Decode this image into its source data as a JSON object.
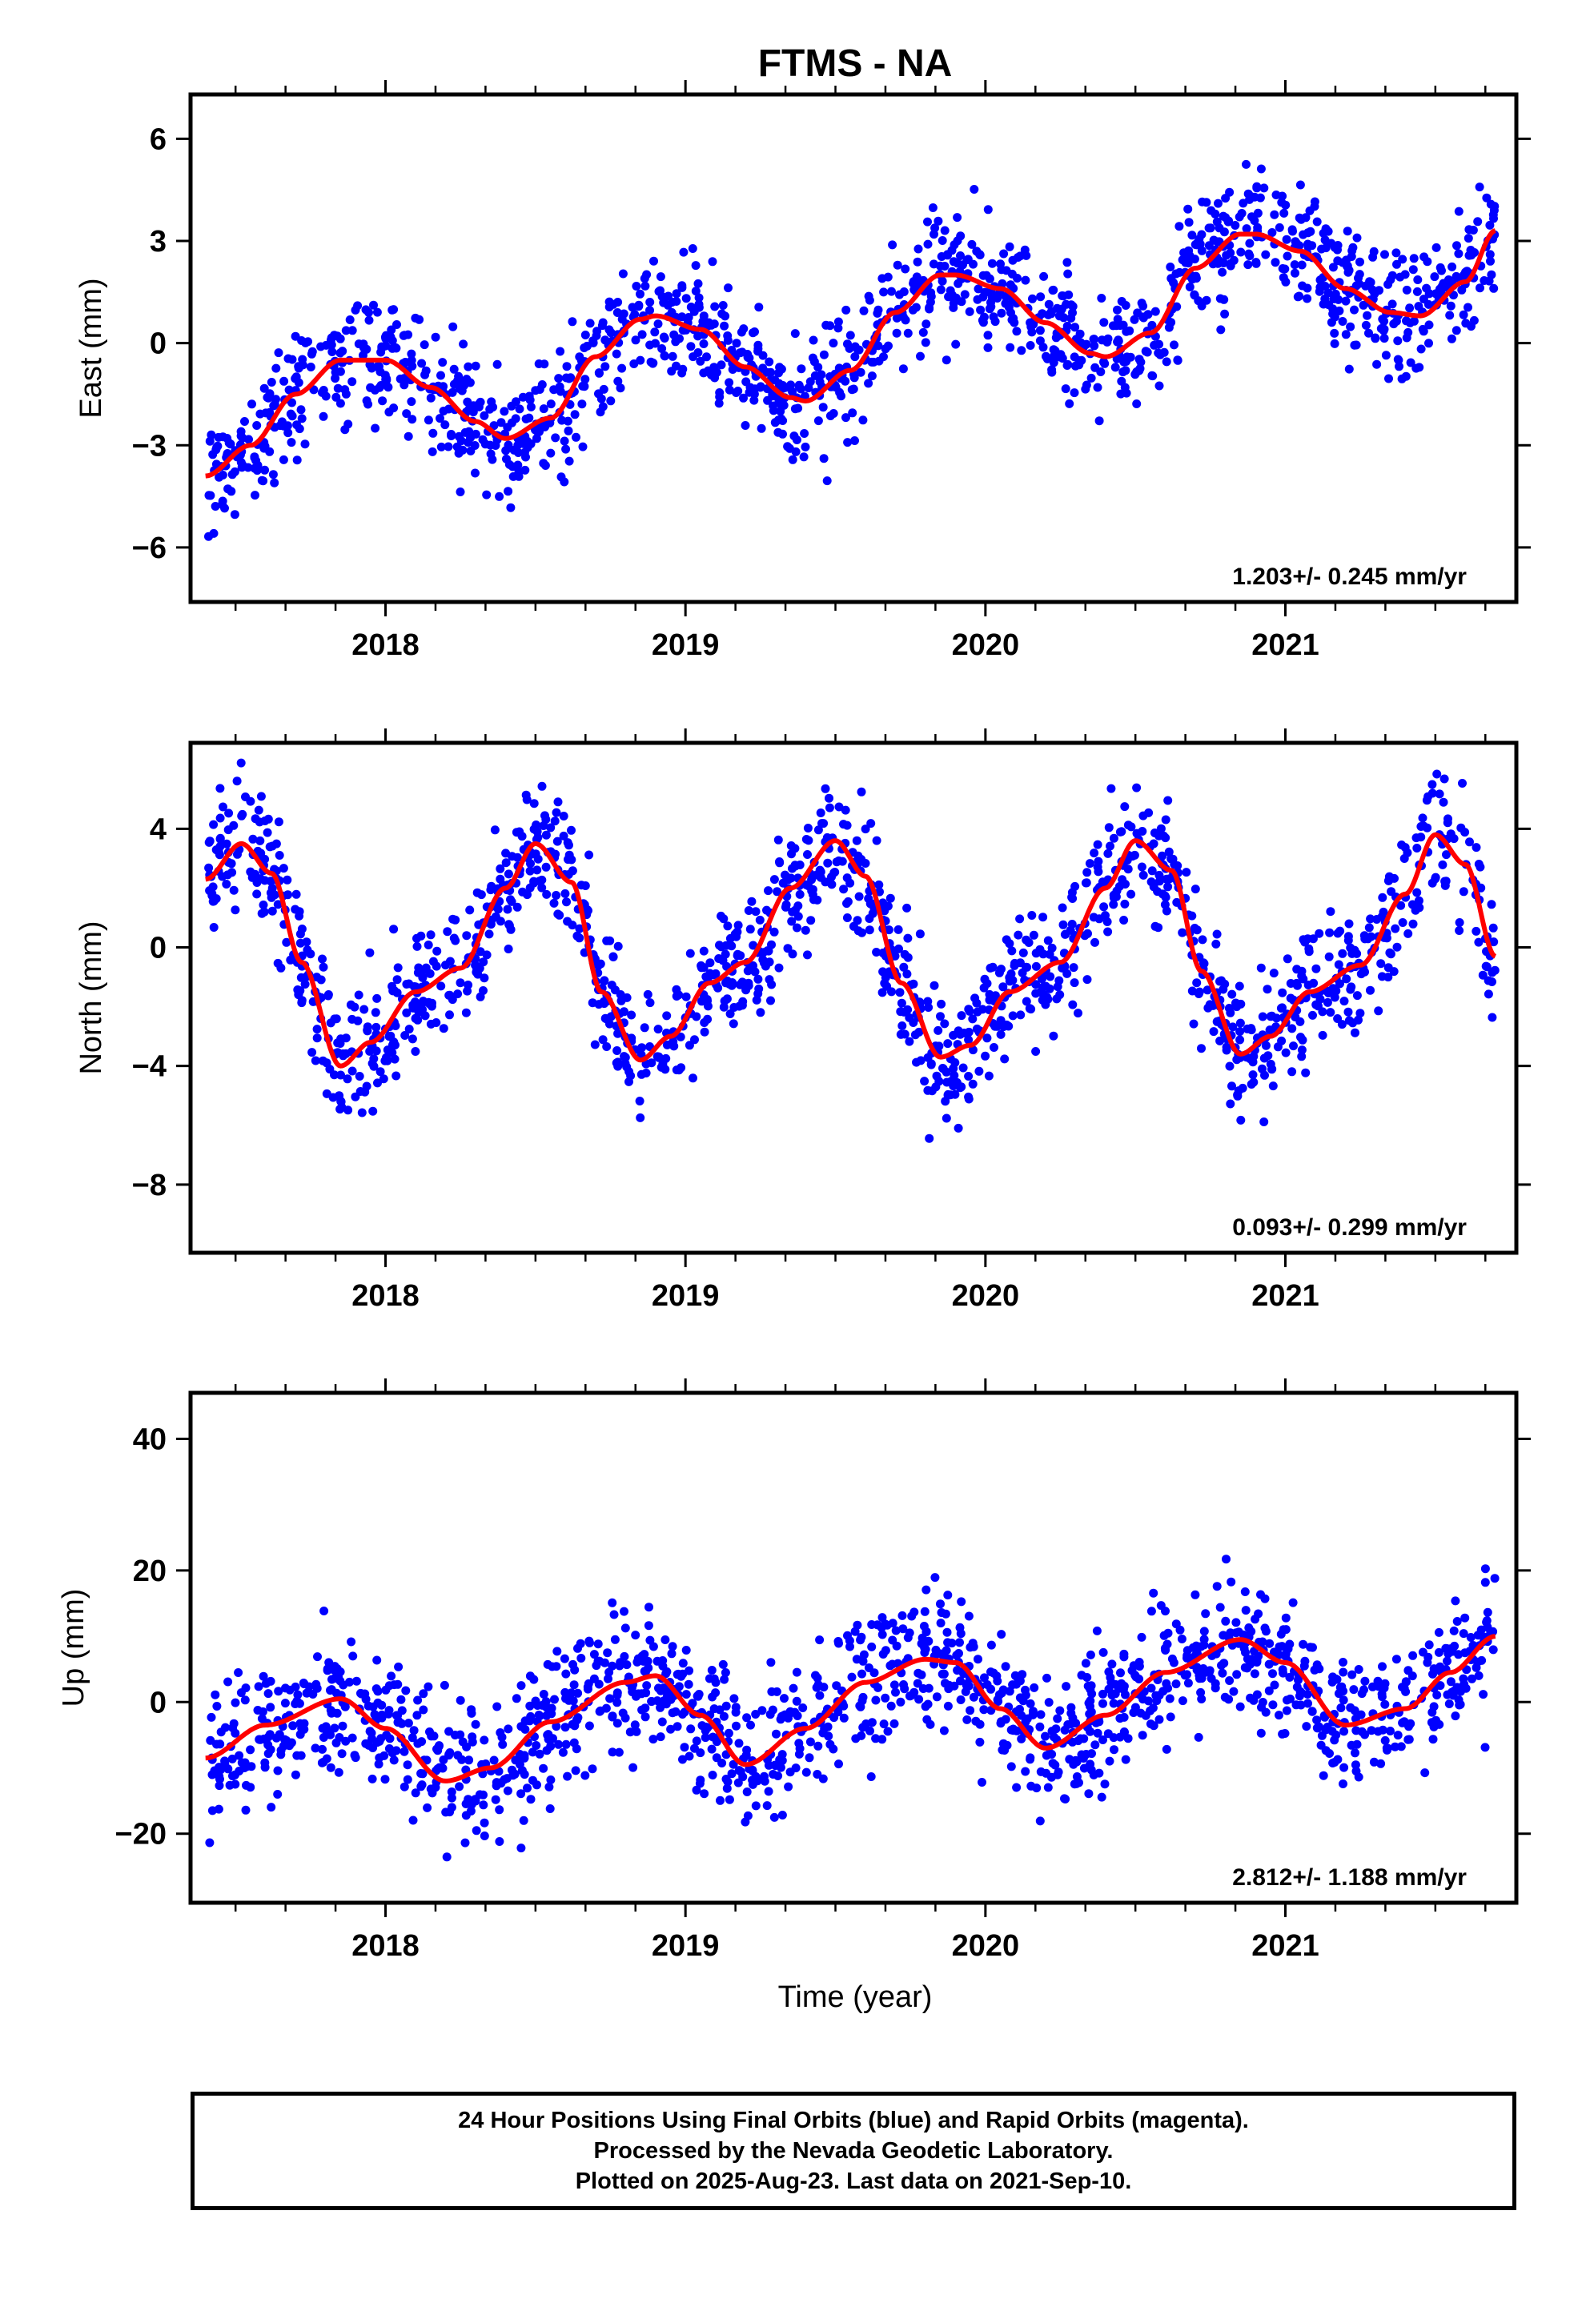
{
  "colors": {
    "points": "#0000ff",
    "fit": "#ff0000",
    "frame": "#000000"
  },
  "chart_data": {
    "type": "scatter",
    "title": "FTMS - NA",
    "xlabel": "Time (year)",
    "x_range": [
      2017.35,
      2021.77
    ],
    "x_ticks": [
      "2018",
      "2019",
      "2020",
      "2021"
    ],
    "last_data": "2021-Sep-10",
    "panels": [
      {
        "name": "east",
        "ylabel": "East (mm)",
        "ylim": [
          -7.6,
          7.3
        ],
        "y_ticks": [
          "-6",
          "-3",
          "0",
          "3",
          "6"
        ],
        "rate": "1.203+/- 0.245 mm/yr",
        "fit_x": [
          2017.4,
          2017.55,
          2017.7,
          2017.85,
          2018.0,
          2018.15,
          2018.3,
          2018.4,
          2018.55,
          2018.7,
          2018.85,
          2018.9,
          2019.05,
          2019.2,
          2019.35,
          2019.4,
          2019.55,
          2019.7,
          2019.85,
          2019.9,
          2020.05,
          2020.2,
          2020.35,
          2020.4,
          2020.55,
          2020.7,
          2020.85,
          2020.9,
          2021.05,
          2021.2,
          2021.35,
          2021.45,
          2021.6,
          2021.7
        ],
        "fit_y": [
          -3.9,
          -3.0,
          -1.5,
          -0.5,
          -0.5,
          -1.3,
          -2.3,
          -2.8,
          -2.2,
          -0.4,
          0.7,
          0.8,
          0.4,
          -0.7,
          -1.6,
          -1.7,
          -0.8,
          0.9,
          2.0,
          2.0,
          1.6,
          0.6,
          -0.3,
          -0.4,
          0.3,
          2.2,
          3.2,
          3.2,
          2.7,
          1.6,
          0.9,
          0.8,
          1.8,
          3.3
        ],
        "points_seed": 11,
        "points_sd": 0.9
      },
      {
        "name": "north",
        "ylabel": "North (mm)",
        "ylim": [
          -10.3,
          6.9
        ],
        "y_ticks": [
          "-8",
          "-4",
          "0",
          "4"
        ],
        "rate": "0.093+/- 0.299 mm/yr",
        "fit_x": [
          2017.4,
          2017.52,
          2017.62,
          2017.72,
          2017.85,
          2017.95,
          2018.1,
          2018.25,
          2018.4,
          2018.5,
          2018.62,
          2018.72,
          2018.85,
          2018.95,
          2019.08,
          2019.2,
          2019.35,
          2019.5,
          2019.6,
          2019.72,
          2019.85,
          2019.95,
          2020.08,
          2020.25,
          2020.4,
          2020.5,
          2020.62,
          2020.72,
          2020.85,
          2020.95,
          2021.08,
          2021.25,
          2021.4,
          2021.5,
          2021.6,
          2021.7
        ],
        "fit_y": [
          2.3,
          3.5,
          2.5,
          -0.5,
          -4.0,
          -3.2,
          -1.5,
          -0.7,
          2.0,
          3.5,
          2.2,
          -1.5,
          -3.8,
          -3.0,
          -1.2,
          -0.5,
          2.0,
          3.6,
          2.4,
          -1.2,
          -3.7,
          -3.3,
          -1.5,
          -0.5,
          2.0,
          3.6,
          2.6,
          -0.8,
          -3.6,
          -3.0,
          -1.5,
          -0.6,
          1.8,
          3.8,
          2.8,
          -0.3
        ],
        "points_seed": 23,
        "points_sd": 1.1
      },
      {
        "name": "up",
        "ylabel": "Up (mm)",
        "ylim": [
          -30.5,
          47
        ],
        "y_ticks": [
          "-20",
          "0",
          "20",
          "40"
        ],
        "rate": "2.812+/- 1.188 mm/yr",
        "fit_x": [
          2017.4,
          2017.6,
          2017.85,
          2018.0,
          2018.2,
          2018.35,
          2018.55,
          2018.8,
          2018.9,
          2019.05,
          2019.2,
          2019.4,
          2019.6,
          2019.8,
          2019.9,
          2020.05,
          2020.2,
          2020.4,
          2020.6,
          2020.85,
          2021.0,
          2021.2,
          2021.4,
          2021.55,
          2021.7
        ],
        "fit_y": [
          -8.5,
          -3.5,
          0.5,
          -4,
          -12,
          -10,
          -3,
          3,
          4,
          -2,
          -9.5,
          -4,
          3,
          6.5,
          6,
          -1,
          -7,
          -2,
          4.5,
          9.5,
          6,
          -3.5,
          -1,
          4.5,
          10
        ],
        "points_seed": 37,
        "points_sd": 5.2
      }
    ]
  },
  "footer": {
    "line1": "24 Hour Positions Using Final Orbits (blue) and Rapid Orbits (magenta).",
    "line2": "Processed by the Nevada Geodetic Laboratory.",
    "line3": "Plotted on 2025-Aug-23. Last data on 2021-Sep-10."
  }
}
